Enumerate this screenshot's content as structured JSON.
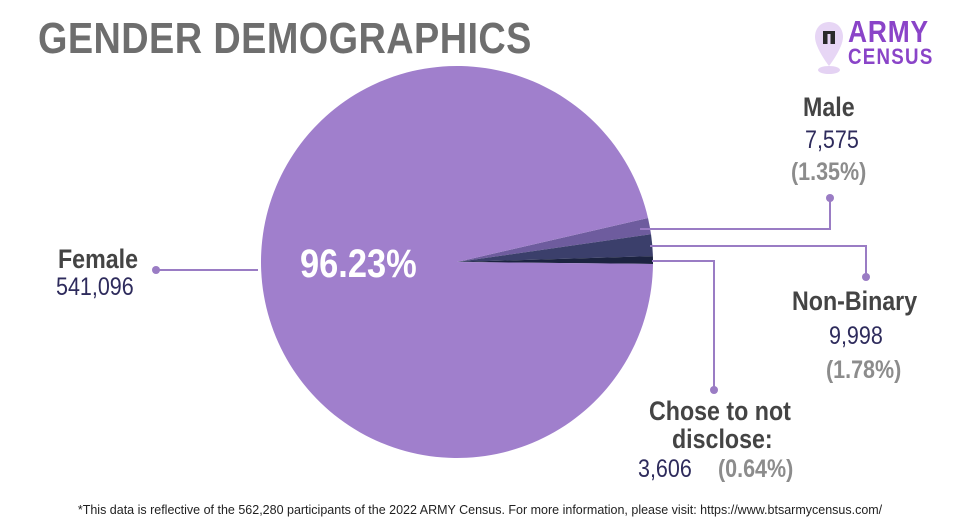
{
  "header": {
    "title": "GENDER DEMOGRAPHICS",
    "logo_line1": "ARMY",
    "logo_line2": "CENSUS",
    "logo_icon": "map-pin-icon"
  },
  "colors": {
    "female": "#a07fcc",
    "male": "#6e5c9e",
    "non_binary": "#3b3f6b",
    "undisclosed": "#1c2340",
    "title": "#6e6e6e",
    "brand": "#8a44c8",
    "leader": "#9a7cc4"
  },
  "chart_data": {
    "type": "pie",
    "title": "GENDER DEMOGRAPHICS",
    "total_participants": 562280,
    "center_label": "96.23%",
    "slices": [
      {
        "key": "female",
        "name": "Female",
        "count": 541096,
        "count_label": "541,096",
        "percent": 96.23,
        "percent_label": ""
      },
      {
        "key": "male",
        "name": "Male",
        "count": 7575,
        "count_label": "7,575",
        "percent": 1.35,
        "percent_label": "(1.35%)"
      },
      {
        "key": "non_binary",
        "name": "Non-Binary",
        "count": 9998,
        "count_label": "9,998",
        "percent": 1.78,
        "percent_label": "(1.78%)"
      },
      {
        "key": "undisclosed",
        "name_line1": "Chose to not",
        "name_line2": "disclose:",
        "count": 3606,
        "count_label": "3,606",
        "percent": 0.64,
        "percent_label": "(0.64%)"
      }
    ]
  },
  "footnote": "*This data is reflective of the 562,280 participants of the 2022 ARMY Census. For more information, please visit: https://www.btsarmycensus.com/"
}
